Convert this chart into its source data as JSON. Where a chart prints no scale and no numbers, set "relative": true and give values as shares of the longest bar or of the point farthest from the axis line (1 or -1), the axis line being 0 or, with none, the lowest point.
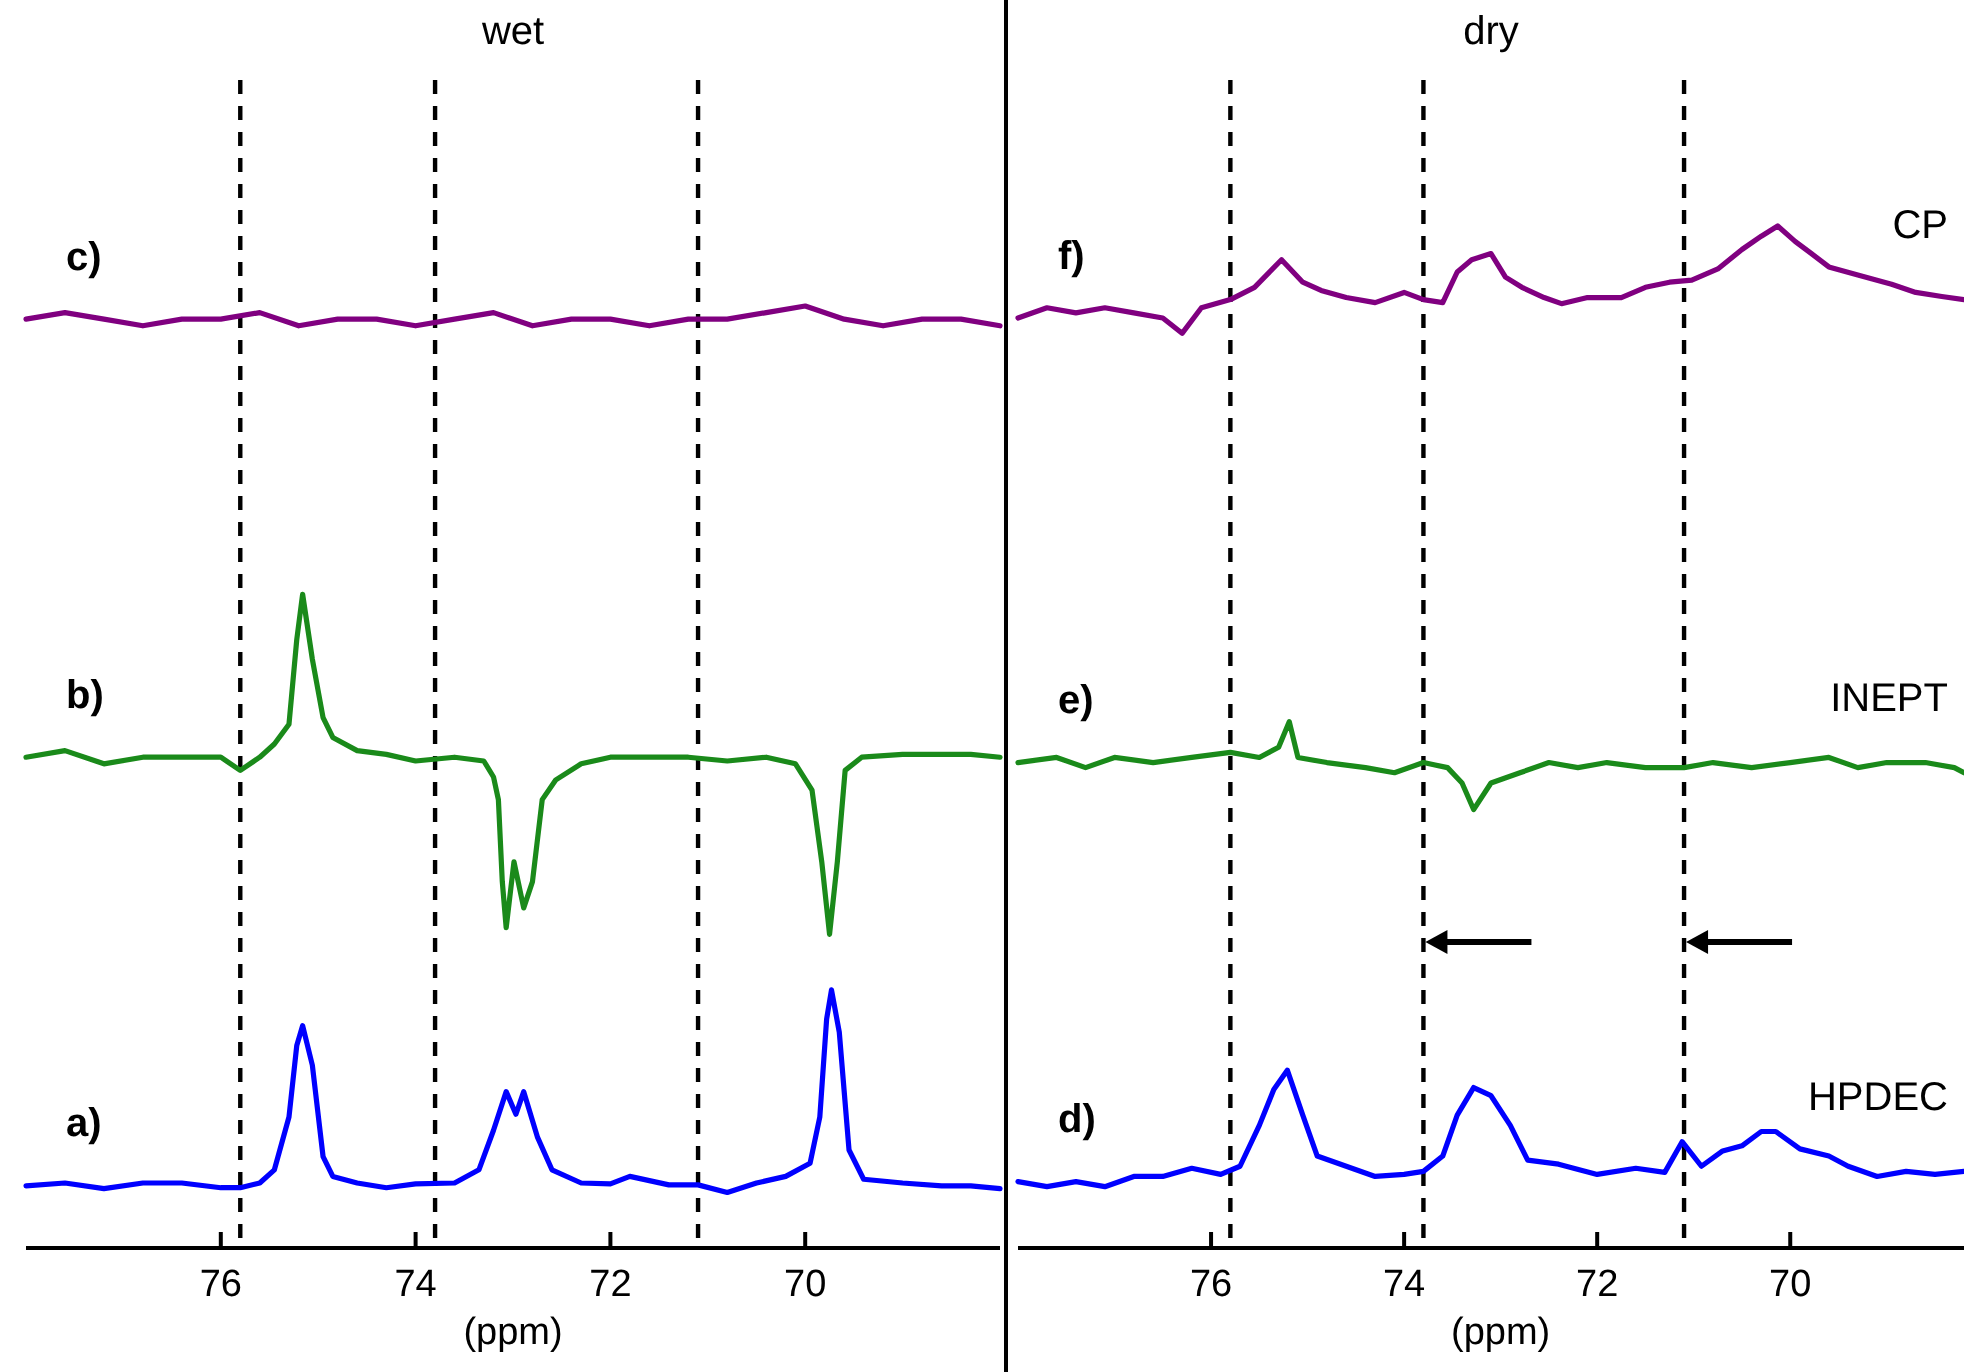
{
  "chart_data": [
    {
      "type": "line",
      "title": "wet",
      "xlabel": "(ppm)",
      "relative": true,
      "xlim": [
        78,
        68
      ],
      "xticks": [
        76,
        74,
        72,
        70
      ],
      "line_style": "solid",
      "ref_lines": [
        {
          "axis": "x",
          "value": 75.8,
          "color": "#000000",
          "line_style": "dashed"
        },
        {
          "axis": "x",
          "value": 73.8,
          "color": "#000000",
          "line_style": "dashed"
        },
        {
          "axis": "x",
          "value": 71.1,
          "color": "#000000",
          "line_style": "dashed"
        }
      ],
      "annotations": [
        "c)",
        "b)",
        "a)"
      ],
      "series": [
        {
          "color": "#800080",
          "x": [
            78,
            77.6,
            77.2,
            76.8,
            76.4,
            76,
            75.6,
            75.2,
            74.8,
            74.4,
            74,
            73.6,
            73.2,
            72.8,
            72.4,
            72,
            71.6,
            71.2,
            70.8,
            70.4,
            70,
            69.6,
            69.2,
            68.8,
            68.4,
            68
          ],
          "values": [
            0.986,
            0.993,
            0.986,
            0.979,
            0.986,
            0.986,
            0.993,
            0.979,
            0.986,
            0.986,
            0.979,
            0.986,
            0.993,
            0.979,
            0.986,
            0.986,
            0.979,
            0.986,
            0.986,
            0.993,
            1.0,
            0.986,
            0.979,
            0.986,
            0.986,
            0.979
          ]
        },
        {
          "color": "#1a8a1a",
          "x": [
            78,
            77.6,
            77.2,
            76.8,
            76.4,
            76.0,
            75.8,
            75.6,
            75.45,
            75.3,
            75.22,
            75.16,
            75.06,
            74.95,
            74.85,
            74.6,
            74.3,
            74.0,
            73.6,
            73.3,
            73.2,
            73.15,
            73.11,
            73.07,
            72.99,
            72.89,
            72.8,
            72.7,
            72.56,
            72.3,
            72.0,
            71.6,
            71.2,
            70.8,
            70.4,
            70.1,
            69.93,
            69.83,
            69.75,
            69.67,
            69.59,
            69.42,
            69.0,
            68.6,
            68.3,
            68.0
          ],
          "values": [
            0.521,
            0.528,
            0.514,
            0.521,
            0.521,
            0.521,
            0.507,
            0.521,
            0.535,
            0.556,
            0.646,
            0.694,
            0.625,
            0.563,
            0.542,
            0.528,
            0.524,
            0.517,
            0.521,
            0.517,
            0.5,
            0.476,
            0.389,
            0.34,
            0.41,
            0.361,
            0.389,
            0.476,
            0.497,
            0.514,
            0.521,
            0.521,
            0.521,
            0.517,
            0.521,
            0.514,
            0.486,
            0.41,
            0.333,
            0.41,
            0.507,
            0.521,
            0.524,
            0.524,
            0.524,
            0.521
          ]
        },
        {
          "color": "#0000ff",
          "x": [
            78,
            77.6,
            77.2,
            76.8,
            76.4,
            76.0,
            75.8,
            75.6,
            75.45,
            75.3,
            75.22,
            75.16,
            75.06,
            74.95,
            74.85,
            74.6,
            74.3,
            74.0,
            73.6,
            73.35,
            73.2,
            73.07,
            72.97,
            72.89,
            72.75,
            72.6,
            72.3,
            72.0,
            71.8,
            71.4,
            71.1,
            70.8,
            70.5,
            70.2,
            69.95,
            69.85,
            69.78,
            69.73,
            69.65,
            69.55,
            69.4,
            69.0,
            68.6,
            68.3,
            68.0
          ],
          "values": [
            0.066,
            0.069,
            0.063,
            0.069,
            0.069,
            0.064,
            0.064,
            0.069,
            0.083,
            0.139,
            0.215,
            0.236,
            0.194,
            0.097,
            0.076,
            0.069,
            0.064,
            0.068,
            0.069,
            0.083,
            0.125,
            0.166,
            0.142,
            0.166,
            0.118,
            0.083,
            0.069,
            0.068,
            0.076,
            0.067,
            0.067,
            0.059,
            0.069,
            0.076,
            0.09,
            0.139,
            0.243,
            0.274,
            0.229,
            0.104,
            0.073,
            0.069,
            0.066,
            0.066,
            0.063
          ]
        }
      ]
    },
    {
      "type": "line",
      "title": "dry",
      "xlabel": "(ppm)",
      "relative": true,
      "xlim": [
        78,
        68.2
      ],
      "xticks": [
        76,
        74,
        72,
        70
      ],
      "line_style": "solid",
      "ref_lines": [
        {
          "axis": "x",
          "value": 75.8,
          "color": "#000000",
          "line_style": "dashed"
        },
        {
          "axis": "x",
          "value": 73.8,
          "color": "#000000",
          "line_style": "dashed"
        },
        {
          "axis": "x",
          "value": 71.1,
          "color": "#000000",
          "line_style": "dashed"
        }
      ],
      "annotations": [
        "f)",
        "e)",
        "d)",
        "CP",
        "INEPT",
        "HPDEC"
      ],
      "series": [
        {
          "color": "#800080",
          "x": [
            78,
            77.7,
            77.4,
            77.1,
            76.8,
            76.5,
            76.3,
            76.1,
            75.8,
            75.55,
            75.27,
            75.05,
            74.86,
            74.6,
            74.3,
            74.0,
            73.8,
            73.6,
            73.45,
            73.3,
            73.1,
            72.95,
            72.78,
            72.55,
            72.37,
            72.1,
            71.75,
            71.5,
            71.25,
            71.02,
            70.75,
            70.5,
            70.3,
            70.13,
            69.95,
            69.78,
            69.6,
            69.3,
            68.95,
            68.7,
            68.43,
            68.2
          ],
          "values": [
            0.91,
            0.92,
            0.915,
            0.92,
            0.915,
            0.91,
            0.895,
            0.92,
            0.928,
            0.94,
            0.967,
            0.945,
            0.937,
            0.93,
            0.925,
            0.935,
            0.928,
            0.925,
            0.955,
            0.967,
            0.973,
            0.95,
            0.94,
            0.93,
            0.924,
            0.93,
            0.93,
            0.94,
            0.945,
            0.947,
            0.958,
            0.977,
            0.99,
            1.0,
            0.985,
            0.973,
            0.96,
            0.952,
            0.943,
            0.935,
            0.931,
            0.928
          ]
        },
        {
          "color": "#1a8a1a",
          "x": [
            78,
            77.6,
            77.3,
            77,
            76.6,
            76.2,
            75.8,
            75.5,
            75.3,
            75.19,
            75.1,
            74.8,
            74.4,
            74.1,
            73.8,
            73.55,
            73.4,
            73.28,
            73.1,
            72.8,
            72.5,
            72.2,
            71.9,
            71.5,
            71.1,
            70.8,
            70.4,
            70.0,
            69.6,
            69.3,
            69.0,
            68.6,
            68.3,
            68.2
          ],
          "values": [
            0.475,
            0.48,
            0.47,
            0.48,
            0.475,
            0.48,
            0.485,
            0.48,
            0.49,
            0.515,
            0.48,
            0.475,
            0.47,
            0.465,
            0.475,
            0.47,
            0.455,
            0.429,
            0.455,
            0.465,
            0.475,
            0.47,
            0.475,
            0.47,
            0.47,
            0.475,
            0.47,
            0.475,
            0.48,
            0.47,
            0.475,
            0.475,
            0.47,
            0.465
          ]
        },
        {
          "color": "#0000ff",
          "x": [
            78,
            77.7,
            77.4,
            77.1,
            76.8,
            76.5,
            76.2,
            75.9,
            75.7,
            75.5,
            75.35,
            75.21,
            75.05,
            74.9,
            74.6,
            74.3,
            74.0,
            73.8,
            73.6,
            73.45,
            73.28,
            73.1,
            72.9,
            72.72,
            72.4,
            72.0,
            71.6,
            71.3,
            71.12,
            70.92,
            70.7,
            70.5,
            70.3,
            70.15,
            69.9,
            69.6,
            69.4,
            69.1,
            68.8,
            68.5,
            68.2
          ],
          "values": [
            0.065,
            0.06,
            0.065,
            0.06,
            0.07,
            0.07,
            0.078,
            0.072,
            0.08,
            0.12,
            0.155,
            0.174,
            0.13,
            0.09,
            0.08,
            0.07,
            0.072,
            0.075,
            0.09,
            0.13,
            0.157,
            0.149,
            0.12,
            0.086,
            0.082,
            0.072,
            0.078,
            0.074,
            0.104,
            0.08,
            0.095,
            0.1,
            0.114,
            0.114,
            0.097,
            0.09,
            0.08,
            0.07,
            0.075,
            0.072,
            0.075
          ]
        }
      ]
    }
  ]
}
